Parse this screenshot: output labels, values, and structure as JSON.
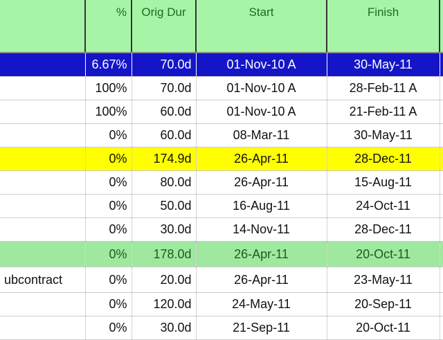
{
  "columns": [
    "",
    "%",
    "Orig Dur",
    "Start",
    "Finish",
    ""
  ],
  "rows": [
    {
      "name": "",
      "pct": "6.67%",
      "dur": "70.0d",
      "start": "01-Nov-10 A",
      "finish": "30-May-11",
      "style": "sel"
    },
    {
      "name": "",
      "pct": "100%",
      "dur": "70.0d",
      "start": "01-Nov-10 A",
      "finish": "28-Feb-11 A",
      "style": ""
    },
    {
      "name": "",
      "pct": "100%",
      "dur": "60.0d",
      "start": "01-Nov-10 A",
      "finish": "21-Feb-11 A",
      "style": ""
    },
    {
      "name": "",
      "pct": "0%",
      "dur": "60.0d",
      "start": "08-Mar-11",
      "finish": "30-May-11",
      "style": ""
    },
    {
      "name": "",
      "pct": "0%",
      "dur": "174.9d",
      "start": "26-Apr-11",
      "finish": "28-Dec-11",
      "style": "yel"
    },
    {
      "name": "",
      "pct": "0%",
      "dur": "80.0d",
      "start": "26-Apr-11",
      "finish": "15-Aug-11",
      "style": ""
    },
    {
      "name": "",
      "pct": "0%",
      "dur": "50.0d",
      "start": "16-Aug-11",
      "finish": "24-Oct-11",
      "style": ""
    },
    {
      "name": "",
      "pct": "0%",
      "dur": "30.0d",
      "start": "14-Nov-11",
      "finish": "28-Dec-11",
      "style": ""
    },
    {
      "name": "",
      "pct": "0%",
      "dur": "178.0d",
      "start": "26-Apr-11",
      "finish": "20-Oct-11",
      "style": "grn"
    },
    {
      "name": "ubcontract",
      "pct": "0%",
      "dur": "20.0d",
      "start": "26-Apr-11",
      "finish": "23-May-11",
      "style": "tall"
    },
    {
      "name": "",
      "pct": "0%",
      "dur": "120.0d",
      "start": "24-May-11",
      "finish": "20-Sep-11",
      "style": ""
    },
    {
      "name": "",
      "pct": "0%",
      "dur": "30.0d",
      "start": "21-Sep-11",
      "finish": "20-Oct-11",
      "style": ""
    }
  ]
}
